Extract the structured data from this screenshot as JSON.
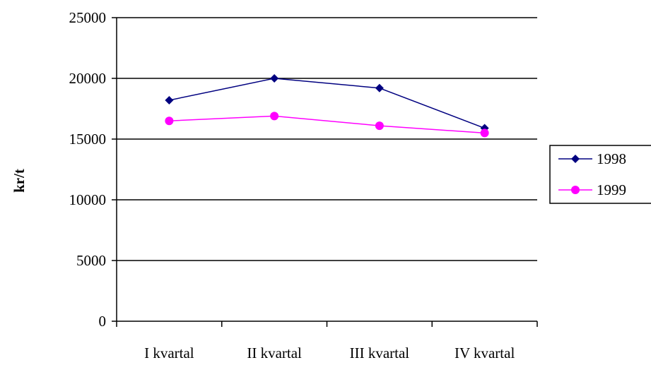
{
  "chart_data": {
    "type": "line",
    "title": "",
    "xlabel": "",
    "ylabel": "kr/t",
    "categories": [
      "I kvartal",
      "II kvartal",
      "III kvartal",
      "IV kvartal"
    ],
    "ylim": [
      0,
      25000
    ],
    "yticks": [
      0,
      5000,
      10000,
      15000,
      20000,
      25000
    ],
    "grid": true,
    "legend_position": "right",
    "series": [
      {
        "name": "1998",
        "values": [
          18200,
          20000,
          19200,
          15900
        ],
        "color": "#000080",
        "marker": "diamond"
      },
      {
        "name": "1999",
        "values": [
          16500,
          16900,
          16100,
          15500
        ],
        "color": "#ff00ff",
        "marker": "circle"
      }
    ]
  }
}
